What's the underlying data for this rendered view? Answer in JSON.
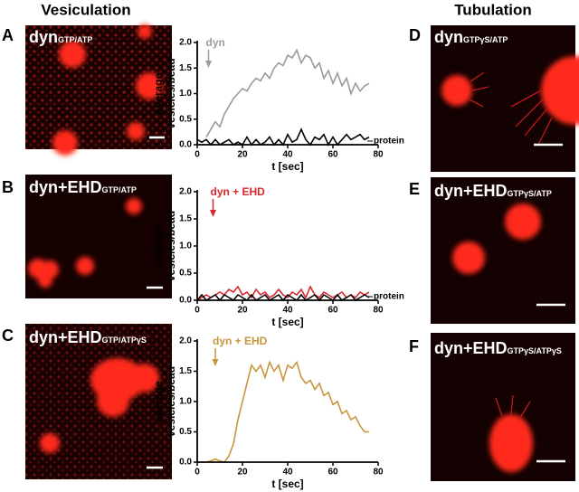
{
  "figure": {
    "left_heading": "Vesiculation",
    "right_heading": "Tubulation",
    "panels": [
      {
        "letter": "A",
        "name": "dyn",
        "condition": "GTP/ATP"
      },
      {
        "letter": "B",
        "name": "dyn+EHD",
        "condition": "GTP/ATP"
      },
      {
        "letter": "C",
        "name": "dyn+EHD",
        "condition": "GTP/ATPγS"
      },
      {
        "letter": "D",
        "name": "dyn",
        "condition": "GTPγS/ATP"
      },
      {
        "letter": "E",
        "name": "dyn+EHD",
        "condition": "GTPγS/ATP"
      },
      {
        "letter": "F",
        "name": "dyn+EHD",
        "condition": "GTPγS/ATPγS"
      }
    ]
  },
  "chart_data": [
    {
      "type": "line",
      "ylabel": [
        "average",
        "vesicles/bead"
      ],
      "xlabel": "t [sec]",
      "xlim": [
        0,
        80
      ],
      "xticks": [
        0,
        20,
        40,
        60,
        80
      ],
      "ylim": [
        0,
        2
      ],
      "yticks": [
        {
          "value": 0,
          "label": "0.0"
        },
        {
          "value": 0.5,
          "label": "0.5"
        },
        {
          "value": 1,
          "label": "1.0"
        },
        {
          "value": 1.5,
          "label": "1.5"
        },
        {
          "value": 2,
          "label": "2.0"
        }
      ],
      "arrow_x": 5,
      "x": [
        0,
        2,
        4,
        6,
        8,
        10,
        12,
        14,
        16,
        18,
        20,
        22,
        24,
        26,
        28,
        30,
        32,
        34,
        36,
        38,
        40,
        42,
        44,
        46,
        48,
        50,
        52,
        54,
        56,
        58,
        60,
        62,
        64,
        66,
        68,
        70,
        72,
        74,
        76
      ],
      "series": [
        {
          "name": "dyn",
          "color": "#9a9a9a",
          "values": [
            null,
            null,
            0.15,
            0.3,
            0.45,
            0.35,
            0.6,
            0.75,
            0.9,
            1.0,
            1.1,
            1.05,
            1.2,
            1.3,
            1.25,
            1.4,
            1.3,
            1.5,
            1.6,
            1.55,
            1.75,
            1.7,
            1.85,
            1.6,
            1.75,
            1.7,
            1.5,
            1.6,
            1.3,
            1.45,
            1.2,
            1.4,
            1.15,
            1.3,
            1.0,
            1.2,
            1.05,
            1.15,
            1.2
          ]
        },
        {
          "name": "protein",
          "color": "#000000",
          "values": [
            0.1,
            0.05,
            0.1,
            0,
            0.1,
            0,
            0.05,
            0.1,
            0,
            0.05,
            0,
            0.15,
            0,
            0.1,
            0,
            0.05,
            0.15,
            0,
            0.1,
            0,
            0.2,
            0.05,
            0.1,
            0.3,
            0.1,
            0,
            0.15,
            0.1,
            0.2,
            0,
            0.15,
            0,
            0.1,
            0.2,
            0.1,
            0.15,
            0.2,
            0.1,
            0.15
          ]
        }
      ]
    },
    {
      "type": "line",
      "ylabel": [
        "average",
        "vesicles/bead"
      ],
      "xlabel": "t [sec]",
      "xlim": [
        0,
        80
      ],
      "xticks": [
        0,
        20,
        40,
        60,
        80
      ],
      "ylim": [
        0,
        2
      ],
      "yticks": [
        {
          "value": 0,
          "label": "0.0"
        },
        {
          "value": 0.5,
          "label": "0.5"
        },
        {
          "value": 1,
          "label": "1.0"
        },
        {
          "value": 1.5,
          "label": "1.5"
        },
        {
          "value": 2,
          "label": "2.0"
        }
      ],
      "arrow_x": 7,
      "x": [
        0,
        2,
        4,
        6,
        8,
        10,
        12,
        14,
        16,
        18,
        20,
        22,
        24,
        26,
        28,
        30,
        32,
        34,
        36,
        38,
        40,
        42,
        44,
        46,
        48,
        50,
        52,
        54,
        56,
        58,
        60,
        62,
        64,
        66,
        68,
        70,
        72,
        74,
        76
      ],
      "series": [
        {
          "name": "dyn + EHD",
          "color": "#d8282c",
          "values": [
            0,
            0.05,
            0.1,
            0.05,
            0.1,
            0.15,
            0.1,
            0.2,
            0.15,
            0.25,
            0.1,
            0.15,
            0.05,
            0.2,
            0.1,
            0.15,
            0.05,
            0.1,
            0.2,
            0.1,
            0.05,
            0.15,
            0.1,
            0.2,
            0.05,
            0.25,
            0.1,
            0.05,
            0.15,
            0.1,
            0.05,
            0.1,
            0.15,
            0.05,
            0.1,
            0.05,
            0.15,
            0.1,
            0.15
          ]
        },
        {
          "name": "protein",
          "color": "#000000",
          "values": [
            0,
            0.1,
            0,
            0.05,
            0.1,
            0,
            0.1,
            0.05,
            0,
            0.1,
            0.05,
            0,
            0.1,
            0,
            0.05,
            0.1,
            0,
            0.05,
            0.1,
            0,
            0.1,
            0.05,
            0,
            0.1,
            0,
            0.05,
            0.1,
            0,
            0.1,
            0.05,
            0,
            0.1,
            0,
            0.05,
            0.1,
            0,
            0.05,
            0.1,
            0.05
          ]
        }
      ]
    },
    {
      "type": "line",
      "ylabel": [
        "average",
        "vesicles/bead"
      ],
      "xlabel": "t [sec]",
      "xlim": [
        0,
        80
      ],
      "xticks": [
        0,
        20,
        40,
        60,
        80
      ],
      "ylim": [
        0,
        2
      ],
      "yticks": [
        {
          "value": 0,
          "label": "0.0"
        },
        {
          "value": 0.5,
          "label": "0.5"
        },
        {
          "value": 1,
          "label": "1.0"
        },
        {
          "value": 1.5,
          "label": "1.5"
        },
        {
          "value": 2,
          "label": "2.0"
        }
      ],
      "arrow_x": 8,
      "x": [
        0,
        2,
        4,
        6,
        8,
        10,
        12,
        14,
        16,
        18,
        20,
        22,
        24,
        26,
        28,
        30,
        32,
        34,
        36,
        38,
        40,
        42,
        44,
        46,
        48,
        50,
        52,
        54,
        56,
        58,
        60,
        62,
        64,
        66,
        68,
        70,
        72,
        74,
        76
      ],
      "series": [
        {
          "name": "dyn + EHD",
          "color": "#c8963e",
          "values": [
            0,
            0,
            0,
            0.02,
            0.05,
            0.02,
            0,
            0.1,
            0.3,
            0.7,
            1.0,
            1.3,
            1.6,
            1.5,
            1.6,
            1.4,
            1.65,
            1.5,
            1.6,
            1.35,
            1.6,
            1.55,
            1.65,
            1.4,
            1.3,
            1.35,
            1.2,
            1.3,
            1.1,
            1.15,
            0.95,
            1.0,
            0.8,
            0.85,
            0.7,
            0.75,
            0.6,
            0.5,
            0.5
          ]
        }
      ]
    }
  ]
}
